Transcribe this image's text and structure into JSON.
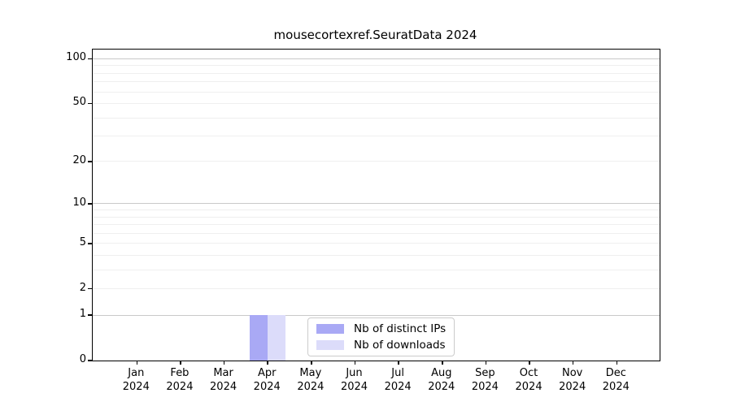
{
  "title": "mousecortexref.SeuratData 2024",
  "colors": {
    "bar_distinct_ips": "#a9a9f5",
    "bar_downloads": "#dcdcfa",
    "grid_major": "#c9c9c9",
    "grid_minor": "#efefef",
    "axis": "#000000",
    "legend_border": "#cccccc",
    "background": "#ffffff",
    "text": "#000000"
  },
  "legend": [
    {
      "label": "Nb of distinct IPs",
      "color_key": "bar_distinct_ips"
    },
    {
      "label": "Nb of downloads",
      "color_key": "bar_downloads"
    }
  ],
  "chart_data": {
    "type": "bar",
    "title": "mousecortexref.SeuratData 2024",
    "xlabel": "",
    "ylabel": "",
    "categories": [
      "Jan 2024",
      "Feb 2024",
      "Mar 2024",
      "Apr 2024",
      "May 2024",
      "Jun 2024",
      "Jul 2024",
      "Aug 2024",
      "Sep 2024",
      "Oct 2024",
      "Nov 2024",
      "Dec 2024"
    ],
    "series": [
      {
        "name": "Nb of distinct IPs",
        "values": [
          0,
          0,
          0,
          1,
          0,
          0,
          0,
          0,
          0,
          0,
          0,
          0
        ]
      },
      {
        "name": "Nb of downloads",
        "values": [
          0,
          0,
          0,
          1,
          0,
          0,
          0,
          0,
          0,
          0,
          0,
          0
        ]
      }
    ],
    "y_scale": "log1p",
    "y_ticks": [
      0,
      1,
      2,
      5,
      10,
      20,
      50,
      100
    ],
    "y_gridlines_major": [
      1,
      10,
      100
    ],
    "y_gridlines_minor": [
      2,
      3,
      4,
      5,
      6,
      7,
      8,
      9,
      20,
      30,
      40,
      50,
      60,
      70,
      80,
      90
    ],
    "ylim": [
      0,
      113
    ],
    "grid": "horizontal",
    "legend_position": "inside-bottom-center"
  }
}
